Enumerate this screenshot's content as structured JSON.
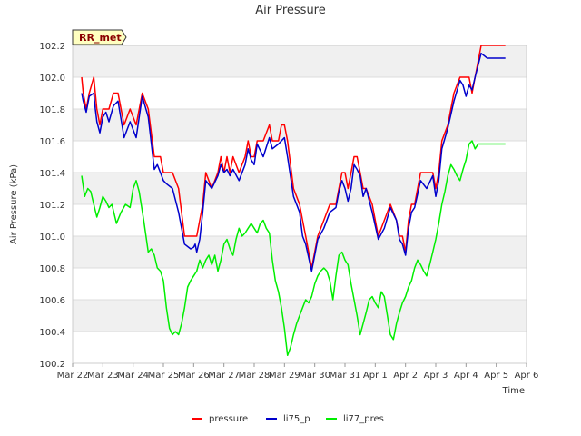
{
  "chart_data": {
    "type": "line",
    "title": "Air Pressure",
    "xlabel": "Time",
    "ylabel": "Air Pressure (kPa)",
    "badge": "RR_met",
    "xlim": [
      0,
      15
    ],
    "ylim": [
      100.2,
      102.2
    ],
    "x_tick_labels": [
      "Mar 22",
      "Mar 23",
      "Mar 24",
      "Mar 25",
      "Mar 26",
      "Mar 27",
      "Mar 28",
      "Mar 29",
      "Mar 30",
      "Mar 31",
      "Apr 1",
      "Apr 2",
      "Apr 3",
      "Apr 4",
      "Apr 5",
      "Apr 6"
    ],
    "y_ticks": [
      "100.2",
      "100.4",
      "100.6",
      "100.8",
      "101.0",
      "101.2",
      "101.4",
      "101.6",
      "101.8",
      "102.0",
      "102.2"
    ],
    "legend": [
      "pressure",
      "li75_p",
      "li77_pres"
    ],
    "colors": {
      "pressure": "#ff0000",
      "li75_p": "#0000cc",
      "li77_pres": "#00ee00",
      "band": "#f0f0f0",
      "grid": "#dddddd"
    },
    "series": [
      {
        "name": "pressure",
        "x": [
          0.3,
          0.35,
          0.45,
          0.55,
          0.7,
          0.75,
          0.8,
          0.9,
          1.0,
          1.1,
          1.2,
          1.35,
          1.5,
          1.7,
          1.9,
          2.1,
          2.3,
          2.5,
          2.7,
          2.8,
          2.9,
          3.0,
          3.1,
          3.3,
          3.5,
          3.7,
          3.9,
          4.0,
          4.05,
          4.1,
          4.2,
          4.3,
          4.4,
          4.6,
          4.8,
          4.9,
          5.0,
          5.1,
          5.2,
          5.3,
          5.5,
          5.7,
          5.8,
          5.9,
          6.0,
          6.1,
          6.3,
          6.5,
          6.6,
          6.8,
          6.9,
          7.0,
          7.1,
          7.3,
          7.5,
          7.6,
          7.7,
          7.9,
          8.1,
          8.3,
          8.5,
          8.7,
          8.8,
          8.9,
          9.0,
          9.1,
          9.2,
          9.3,
          9.4,
          9.5,
          9.6,
          9.7,
          9.9,
          10.1,
          10.3,
          10.5,
          10.7,
          10.8,
          10.9,
          11.0,
          11.1,
          11.2,
          11.3,
          11.5,
          11.7,
          11.9,
          12.0,
          12.1,
          12.2,
          12.4,
          12.6,
          12.8,
          12.9,
          13.0,
          13.1,
          13.2,
          13.3,
          13.5,
          13.7,
          13.8,
          13.9,
          14.0,
          14.1,
          14.2,
          14.3
        ],
        "y": [
          102.0,
          101.9,
          101.8,
          101.9,
          102.0,
          101.9,
          101.8,
          101.7,
          101.8,
          101.8,
          101.8,
          101.9,
          101.9,
          101.7,
          101.8,
          101.7,
          101.9,
          101.8,
          101.5,
          101.5,
          101.5,
          101.4,
          101.4,
          101.4,
          101.3,
          101.0,
          101.0,
          101.0,
          101.0,
          101.0,
          101.1,
          101.2,
          101.4,
          101.3,
          101.4,
          101.5,
          101.4,
          101.5,
          101.4,
          101.5,
          101.4,
          101.5,
          101.6,
          101.5,
          101.5,
          101.6,
          101.6,
          101.7,
          101.6,
          101.6,
          101.7,
          101.7,
          101.6,
          101.3,
          101.2,
          101.1,
          101.0,
          100.8,
          101.0,
          101.1,
          101.2,
          101.2,
          101.3,
          101.4,
          101.4,
          101.3,
          101.4,
          101.5,
          101.5,
          101.4,
          101.3,
          101.3,
          101.2,
          101.0,
          101.1,
          101.2,
          101.1,
          101.0,
          101.0,
          100.9,
          101.1,
          101.2,
          101.2,
          101.4,
          101.4,
          101.4,
          101.3,
          101.4,
          101.6,
          101.7,
          101.9,
          102.0,
          102.0,
          102.0,
          102.0,
          101.9,
          102.0,
          102.2,
          102.2,
          102.2,
          102.2,
          102.2,
          102.2,
          102.2,
          102.2
        ]
      },
      {
        "name": "li75_p",
        "x": [
          0.3,
          0.35,
          0.45,
          0.55,
          0.7,
          0.75,
          0.8,
          0.9,
          1.0,
          1.1,
          1.2,
          1.35,
          1.5,
          1.7,
          1.9,
          2.1,
          2.3,
          2.5,
          2.7,
          2.8,
          2.9,
          3.0,
          3.1,
          3.3,
          3.5,
          3.7,
          3.9,
          4.0,
          4.05,
          4.1,
          4.2,
          4.3,
          4.4,
          4.6,
          4.8,
          4.9,
          5.0,
          5.1,
          5.2,
          5.3,
          5.5,
          5.7,
          5.8,
          5.9,
          6.0,
          6.1,
          6.3,
          6.5,
          6.6,
          6.8,
          6.9,
          7.0,
          7.1,
          7.3,
          7.5,
          7.6,
          7.7,
          7.9,
          8.1,
          8.3,
          8.5,
          8.7,
          8.8,
          8.9,
          9.0,
          9.1,
          9.2,
          9.3,
          9.4,
          9.5,
          9.6,
          9.7,
          9.9,
          10.1,
          10.3,
          10.5,
          10.7,
          10.8,
          10.9,
          11.0,
          11.1,
          11.2,
          11.3,
          11.5,
          11.7,
          11.9,
          12.0,
          12.1,
          12.2,
          12.4,
          12.6,
          12.8,
          12.9,
          13.0,
          13.1,
          13.2,
          13.3,
          13.5,
          13.7,
          13.8,
          13.9,
          14.0,
          14.1,
          14.2,
          14.3
        ],
        "y": [
          101.9,
          101.85,
          101.78,
          101.88,
          101.9,
          101.8,
          101.72,
          101.65,
          101.75,
          101.78,
          101.72,
          101.82,
          101.85,
          101.62,
          101.72,
          101.62,
          101.88,
          101.75,
          101.42,
          101.45,
          101.4,
          101.35,
          101.33,
          101.3,
          101.15,
          100.95,
          100.92,
          100.93,
          100.95,
          100.9,
          100.98,
          101.15,
          101.35,
          101.3,
          101.38,
          101.45,
          101.4,
          101.42,
          101.38,
          101.42,
          101.35,
          101.45,
          101.55,
          101.48,
          101.45,
          101.58,
          101.5,
          101.62,
          101.55,
          101.58,
          101.6,
          101.62,
          101.5,
          101.25,
          101.15,
          101.0,
          100.95,
          100.78,
          100.98,
          101.05,
          101.15,
          101.18,
          101.28,
          101.35,
          101.3,
          101.22,
          101.3,
          101.45,
          101.42,
          101.38,
          101.25,
          101.3,
          101.15,
          100.98,
          101.05,
          101.18,
          101.1,
          100.98,
          100.95,
          100.88,
          101.05,
          101.15,
          101.18,
          101.35,
          101.3,
          101.38,
          101.25,
          101.35,
          101.55,
          101.68,
          101.85,
          101.98,
          101.95,
          101.88,
          101.95,
          101.92,
          102.0,
          102.15,
          102.12,
          102.12,
          102.12,
          102.12,
          102.12,
          102.12,
          102.12
        ]
      },
      {
        "name": "li77_pres",
        "x": [
          0.3,
          0.4,
          0.5,
          0.6,
          0.7,
          0.8,
          0.9,
          1.0,
          1.1,
          1.2,
          1.3,
          1.45,
          1.6,
          1.75,
          1.9,
          2.0,
          2.1,
          2.2,
          2.35,
          2.5,
          2.6,
          2.7,
          2.8,
          2.9,
          3.0,
          3.1,
          3.2,
          3.3,
          3.4,
          3.5,
          3.6,
          3.7,
          3.8,
          3.9,
          4.0,
          4.1,
          4.2,
          4.3,
          4.4,
          4.5,
          4.6,
          4.7,
          4.8,
          4.9,
          5.0,
          5.1,
          5.2,
          5.3,
          5.4,
          5.5,
          5.6,
          5.7,
          5.8,
          5.9,
          6.0,
          6.1,
          6.2,
          6.3,
          6.4,
          6.5,
          6.6,
          6.7,
          6.8,
          6.9,
          7.0,
          7.1,
          7.2,
          7.3,
          7.4,
          7.5,
          7.6,
          7.7,
          7.8,
          7.9,
          8.0,
          8.1,
          8.2,
          8.3,
          8.4,
          8.5,
          8.6,
          8.7,
          8.8,
          8.9,
          9.0,
          9.1,
          9.2,
          9.3,
          9.4,
          9.5,
          9.6,
          9.7,
          9.8,
          9.9,
          10.0,
          10.1,
          10.2,
          10.3,
          10.4,
          10.5,
          10.6,
          10.7,
          10.8,
          10.9,
          11.0,
          11.1,
          11.2,
          11.3,
          11.4,
          11.5,
          11.6,
          11.7,
          11.8,
          11.9,
          12.0,
          12.1,
          12.2,
          12.3,
          12.4,
          12.5,
          12.6,
          12.7,
          12.8,
          12.9,
          13.0,
          13.1,
          13.2,
          13.3,
          13.4,
          13.5,
          13.6,
          13.7,
          13.8,
          13.9,
          14.0,
          14.1,
          14.2,
          14.3
        ],
        "y": [
          101.38,
          101.25,
          101.3,
          101.28,
          101.2,
          101.12,
          101.18,
          101.25,
          101.22,
          101.18,
          101.2,
          101.08,
          101.15,
          101.2,
          101.18,
          101.3,
          101.35,
          101.28,
          101.1,
          100.9,
          100.92,
          100.88,
          100.8,
          100.78,
          100.72,
          100.55,
          100.42,
          100.38,
          100.4,
          100.38,
          100.45,
          100.55,
          100.68,
          100.72,
          100.75,
          100.78,
          100.85,
          100.8,
          100.85,
          100.88,
          100.82,
          100.88,
          100.78,
          100.85,
          100.95,
          100.98,
          100.92,
          100.88,
          100.98,
          101.05,
          101.0,
          101.02,
          101.05,
          101.08,
          101.05,
          101.02,
          101.08,
          101.1,
          101.05,
          101.02,
          100.85,
          100.72,
          100.65,
          100.55,
          100.42,
          100.25,
          100.3,
          100.38,
          100.45,
          100.5,
          100.55,
          100.6,
          100.58,
          100.62,
          100.7,
          100.75,
          100.78,
          100.8,
          100.78,
          100.72,
          100.6,
          100.75,
          100.88,
          100.9,
          100.85,
          100.82,
          100.7,
          100.6,
          100.5,
          100.38,
          100.45,
          100.52,
          100.6,
          100.62,
          100.58,
          100.55,
          100.65,
          100.62,
          100.5,
          100.38,
          100.35,
          100.45,
          100.52,
          100.58,
          100.62,
          100.68,
          100.72,
          100.8,
          100.85,
          100.82,
          100.78,
          100.75,
          100.82,
          100.9,
          100.98,
          101.08,
          101.2,
          101.28,
          101.38,
          101.45,
          101.42,
          101.38,
          101.35,
          101.42,
          101.48,
          101.58,
          101.6,
          101.55,
          101.58,
          101.58,
          101.58,
          101.58,
          101.58,
          101.58,
          101.58,
          101.58,
          101.58,
          101.58
        ]
      }
    ]
  }
}
